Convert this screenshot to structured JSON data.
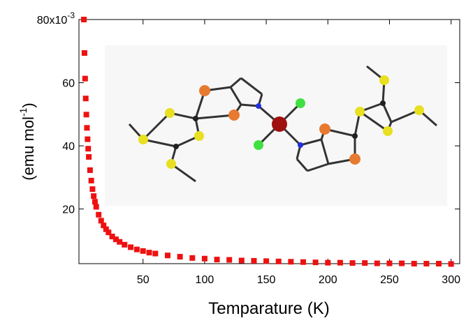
{
  "chart_data": {
    "type": "scatter",
    "marker": "square",
    "color": "#ee1111",
    "xlabel": "Temparature (K)",
    "ylabel": "(emu mol",
    "ylabel_superscript": "-1",
    "ylabel_end": ")",
    "y_tick_exponent": "-3",
    "xlim": [
      -2,
      307
    ],
    "ylim": [
      2.7,
      80
    ],
    "xticks": [
      50,
      100,
      150,
      200,
      250,
      300
    ],
    "yticks": [
      20,
      40,
      60,
      {
        "value": 80,
        "label": "80x10"
      }
    ],
    "x": [
      2,
      2.5,
      3,
      3.5,
      4,
      4.5,
      5,
      5.5,
      6,
      7,
      8,
      9,
      10,
      11,
      12,
      14,
      16,
      18,
      20,
      22,
      25,
      28,
      31,
      35,
      40,
      45,
      50,
      55,
      60,
      70,
      80,
      90,
      100,
      110,
      120,
      130,
      140,
      150,
      160,
      170,
      180,
      190,
      200,
      210,
      220,
      230,
      240,
      250,
      260,
      270,
      280,
      290,
      300
    ],
    "values": [
      80.0,
      69.4,
      61.3,
      55.0,
      49.9,
      45.7,
      42.1,
      39.1,
      36.5,
      32.3,
      29.0,
      26.3,
      24.1,
      22.3,
      20.7,
      18.2,
      16.3,
      14.8,
      13.6,
      12.6,
      11.3,
      10.4,
      9.6,
      8.7,
      7.9,
      7.2,
      6.7,
      6.2,
      5.9,
      5.3,
      4.9,
      4.5,
      4.3,
      4.0,
      3.9,
      3.7,
      3.6,
      3.5,
      3.4,
      3.3,
      3.2,
      3.1,
      3.0,
      3.0,
      2.9,
      2.9,
      2.8,
      2.8,
      2.8,
      2.7,
      2.7,
      2.7,
      2.6
    ]
  }
}
